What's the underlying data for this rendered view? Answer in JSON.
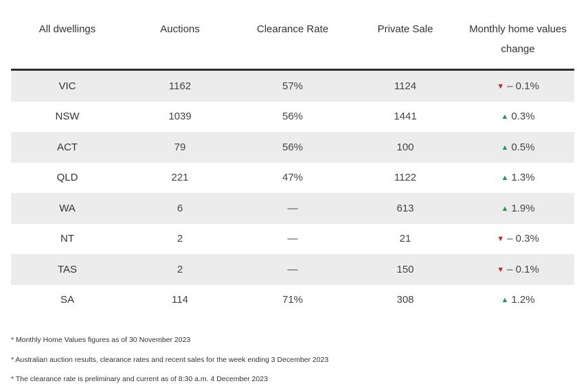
{
  "table": {
    "headers": [
      "All dwellings",
      "Auctions",
      "Clearance Rate",
      "Private Sale",
      "Monthly home values change"
    ],
    "rows": [
      {
        "region": "VIC",
        "auctions": "1162",
        "clearance": "57%",
        "private": "1124",
        "change": "– 0.1%",
        "direction": "down"
      },
      {
        "region": "NSW",
        "auctions": "1039",
        "clearance": "56%",
        "private": "1441",
        "change": "0.3%",
        "direction": "up"
      },
      {
        "region": "ACT",
        "auctions": "79",
        "clearance": "56%",
        "private": "100",
        "change": "0.5%",
        "direction": "up"
      },
      {
        "region": "QLD",
        "auctions": "221",
        "clearance": "47%",
        "private": "1122",
        "change": "1.3%",
        "direction": "up"
      },
      {
        "region": "WA",
        "auctions": "6",
        "clearance": "—",
        "private": "613",
        "change": "1.9%",
        "direction": "up"
      },
      {
        "region": "NT",
        "auctions": "2",
        "clearance": "—",
        "private": "21",
        "change": "– 0.3%",
        "direction": "down"
      },
      {
        "region": "TAS",
        "auctions": "2",
        "clearance": "—",
        "private": "150",
        "change": "– 0.1%",
        "direction": "down"
      },
      {
        "region": "SA",
        "auctions": "114",
        "clearance": "71%",
        "private": "308",
        "change": "1.2%",
        "direction": "up"
      }
    ]
  },
  "footnotes": [
    "* Monthly Home Values figures as of 30 November 2023",
    "* Australian auction results, clearance rates and recent sales for the week ending 3 December 2023",
    "* The clearance rate is preliminary and current as of 8:30 a.m. 4 December 2023"
  ],
  "indicators": {
    "up_glyph": "▲",
    "down_glyph": "▼",
    "up_icon": "triangle-up-icon",
    "down_icon": "triangle-down-icon",
    "up_color": "#1a9e4a",
    "down_color": "#d01f2c"
  }
}
